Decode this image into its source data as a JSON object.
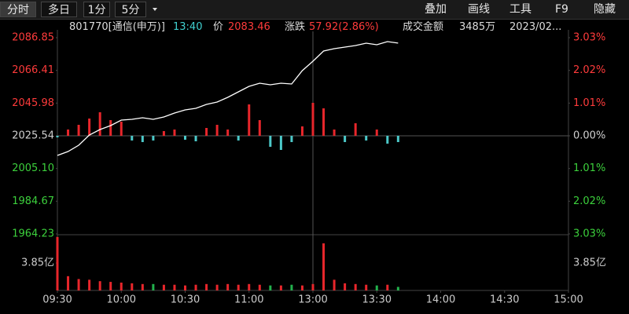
{
  "toolbar": {
    "tabs": [
      "分时",
      "多日",
      "1分",
      "5分"
    ],
    "tools": [
      "叠加",
      "画线",
      "工具",
      "F9",
      "隐藏"
    ]
  },
  "header": {
    "code": "801770[通信(申万)]",
    "time": "13:40",
    "price_label": "价",
    "price": "2083.46",
    "change_label": "涨跌",
    "change": "57.92(2.86%)",
    "amount_label": "成交金额",
    "amount": "3485万",
    "date": "2023/02..."
  },
  "chart_data": {
    "type": "line",
    "x": [
      "09:30",
      "09:35",
      "09:40",
      "09:45",
      "09:50",
      "09:55",
      "10:00",
      "10:05",
      "10:10",
      "10:15",
      "10:20",
      "10:25",
      "10:30",
      "10:35",
      "10:40",
      "10:45",
      "10:50",
      "10:55",
      "11:00",
      "11:05",
      "11:10",
      "11:15",
      "11:20",
      "11:25",
      "11:30",
      "13:05",
      "13:10",
      "13:15",
      "13:20",
      "13:25",
      "13:30",
      "13:35",
      "13:40"
    ],
    "values": [
      2013.28,
      2015.73,
      2019.65,
      2026.03,
      2029.46,
      2031.92,
      2035.35,
      2035.84,
      2036.82,
      2035.84,
      2037.31,
      2039.76,
      2041.73,
      2042.71,
      2045.16,
      2046.63,
      2049.57,
      2053.01,
      2056.44,
      2058.4,
      2057.42,
      2058.4,
      2057.91,
      2066.25,
      2072.14,
      2078.51,
      2079.99,
      2080.97,
      2081.95,
      2083.42,
      2082.44,
      2084.4,
      2083.46
    ],
    "color": "#ffffff",
    "xlim": [
      "09:30",
      "15:00"
    ],
    "xticks": [
      "09:30",
      "10:00",
      "10:30",
      "11:00",
      "13:00",
      "13:30",
      "14:00",
      "14:30",
      "15:00"
    ],
    "ylim": [
      1964.23,
      2086.85
    ],
    "yticks": [
      2086.85,
      2066.41,
      2045.98,
      2025.54,
      {
        "value": 2005.1,
        "label": "2005.10"
      },
      1984.67,
      1964.23
    ],
    "y2lim": [
      -3.03,
      3.03
    ],
    "y2ticks": [
      {
        "value": 3.03,
        "label": "3.03%"
      },
      {
        "value": 2.02,
        "label": "2.02%"
      },
      {
        "value": 1.01,
        "label": "1.01%"
      },
      {
        "value": 0,
        "label": "0.00%"
      },
      {
        "value": -1.01,
        "label": "1.01%"
      },
      {
        "value": -2.02,
        "label": "2.02%"
      },
      {
        "value": -3.03,
        "label": "3.03%"
      }
    ],
    "up_color": "#ff3b3b",
    "down_color": "#3cd03c",
    "flat_color": "#d0d0d0",
    "momentum": {
      "values": [
        -2,
        8,
        14,
        22,
        30,
        20,
        18,
        -6,
        -8,
        -6,
        6,
        8,
        -5,
        -7,
        10,
        14,
        8,
        -6,
        40,
        20,
        -14,
        -18,
        -8,
        12,
        42,
        35,
        8,
        -8,
        16,
        -6,
        8,
        -10,
        -8
      ],
      "ylim": [
        -125,
        125
      ],
      "up_color": "#e8262b",
      "down_color": "#4cc9c9"
    },
    "volume": {
      "values": [
        7.5,
        2.0,
        1.6,
        1.5,
        1.3,
        1.2,
        1.1,
        1.0,
        0.9,
        0.9,
        0.8,
        0.8,
        0.7,
        0.8,
        0.9,
        0.8,
        0.9,
        0.8,
        0.9,
        0.8,
        0.7,
        0.7,
        0.8,
        0.7,
        0.9,
        6.6,
        1.5,
        1.0,
        0.9,
        0.8,
        0.7,
        0.8,
        0.5
      ],
      "ylim": [
        0,
        7.7
      ],
      "yticks": [
        {
          "value": 3.85,
          "label": "3.85亿"
        }
      ],
      "up_color": "#e8262b",
      "down_color": "#22b14c"
    }
  }
}
